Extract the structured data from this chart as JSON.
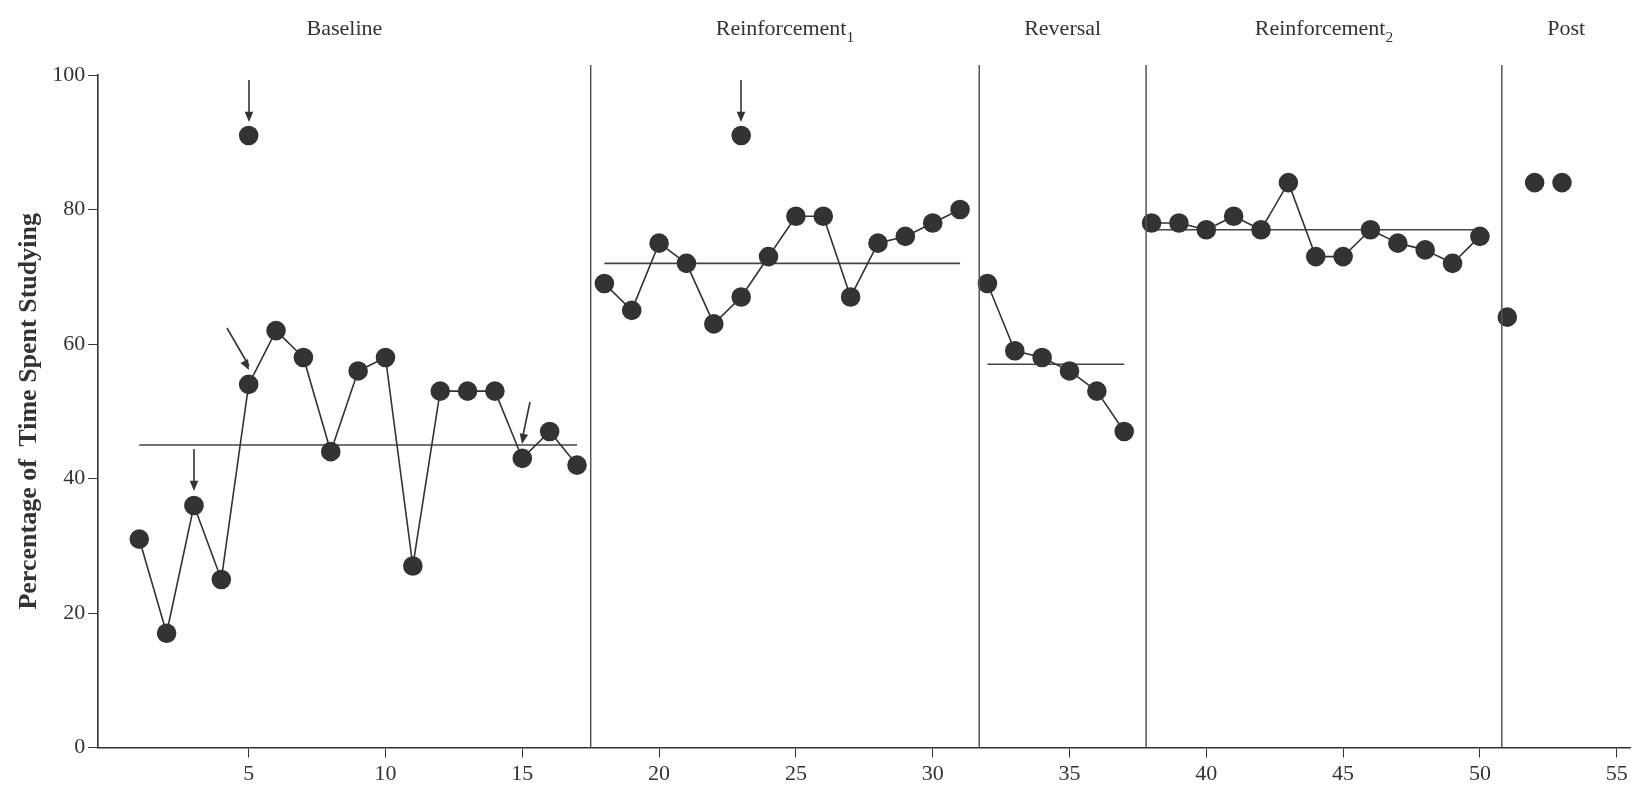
{
  "chart_data": {
    "type": "line",
    "ylabel": "Percentage of  Time Spent Studying",
    "xlim": [
      -0.5,
      55.5
    ],
    "xticks": [
      5,
      10,
      15,
      20,
      25,
      30,
      35,
      40,
      45,
      50,
      55
    ],
    "ylim": [
      0,
      100
    ],
    "yticks": [
      0,
      20,
      40,
      60,
      80,
      100
    ],
    "grid": false,
    "legend": false,
    "marker": "circle",
    "series": [
      {
        "color": "#333333",
        "x": [
          1,
          2,
          3,
          4,
          5,
          6,
          7,
          8,
          9,
          10,
          11,
          12,
          13,
          14,
          15,
          16,
          17
        ],
        "values": [
          31,
          17,
          36,
          25,
          54,
          62,
          58,
          44,
          56,
          58,
          27,
          53,
          53,
          53,
          43,
          47,
          42
        ]
      },
      {
        "color": "#333333",
        "x": [
          18,
          19,
          20,
          21,
          22,
          23,
          24,
          25,
          26,
          27,
          28,
          29,
          30,
          31
        ],
        "values": [
          69,
          65,
          75,
          72,
          63,
          67,
          73,
          79,
          79,
          67,
          75,
          76,
          78,
          80
        ]
      },
      {
        "color": "#333333",
        "x": [
          32,
          33,
          34,
          35,
          36,
          37
        ],
        "values": [
          69,
          59,
          58,
          56,
          53,
          47
        ]
      },
      {
        "color": "#333333",
        "x": [
          38,
          39,
          40,
          41,
          42,
          43,
          44,
          45,
          46,
          47,
          48,
          49,
          50
        ],
        "values": [
          78,
          78,
          77,
          79,
          77,
          84,
          73,
          73,
          77,
          75,
          74,
          72,
          76
        ]
      },
      {
        "type": "scatter",
        "color": "#333333",
        "x": [
          51,
          52,
          53
        ],
        "values": [
          64,
          84,
          84
        ]
      },
      {
        "type": "scatter",
        "color": "#333333",
        "x": [
          5,
          23
        ],
        "values": [
          91,
          91
        ]
      },
      {
        "type": "line",
        "color": "#444444",
        "marker": "none",
        "x": [
          1,
          17
        ],
        "values": [
          45,
          45
        ]
      },
      {
        "type": "line",
        "color": "#444444",
        "marker": "none",
        "x": [
          18,
          31
        ],
        "values": [
          72,
          72
        ]
      },
      {
        "type": "line",
        "color": "#444444",
        "marker": "none",
        "x": [
          32,
          37
        ],
        "values": [
          57,
          57
        ]
      },
      {
        "type": "line",
        "color": "#444444",
        "marker": "none",
        "x": [
          38,
          50
        ],
        "values": [
          77,
          77
        ]
      }
    ],
    "ref_lines": [
      {
        "axis": "x",
        "value": 17.5,
        "color": "#555555"
      },
      {
        "axis": "x",
        "value": 31.7,
        "color": "#555555"
      },
      {
        "axis": "x",
        "value": 37.8,
        "color": "#555555"
      },
      {
        "axis": "x",
        "value": 50.8,
        "color": "#555555"
      }
    ],
    "annotations": [
      "Baseline",
      "Reinforcement$_{1}$",
      "Reversal",
      "Reinforcement$_{2}$",
      "Post"
    ]
  }
}
